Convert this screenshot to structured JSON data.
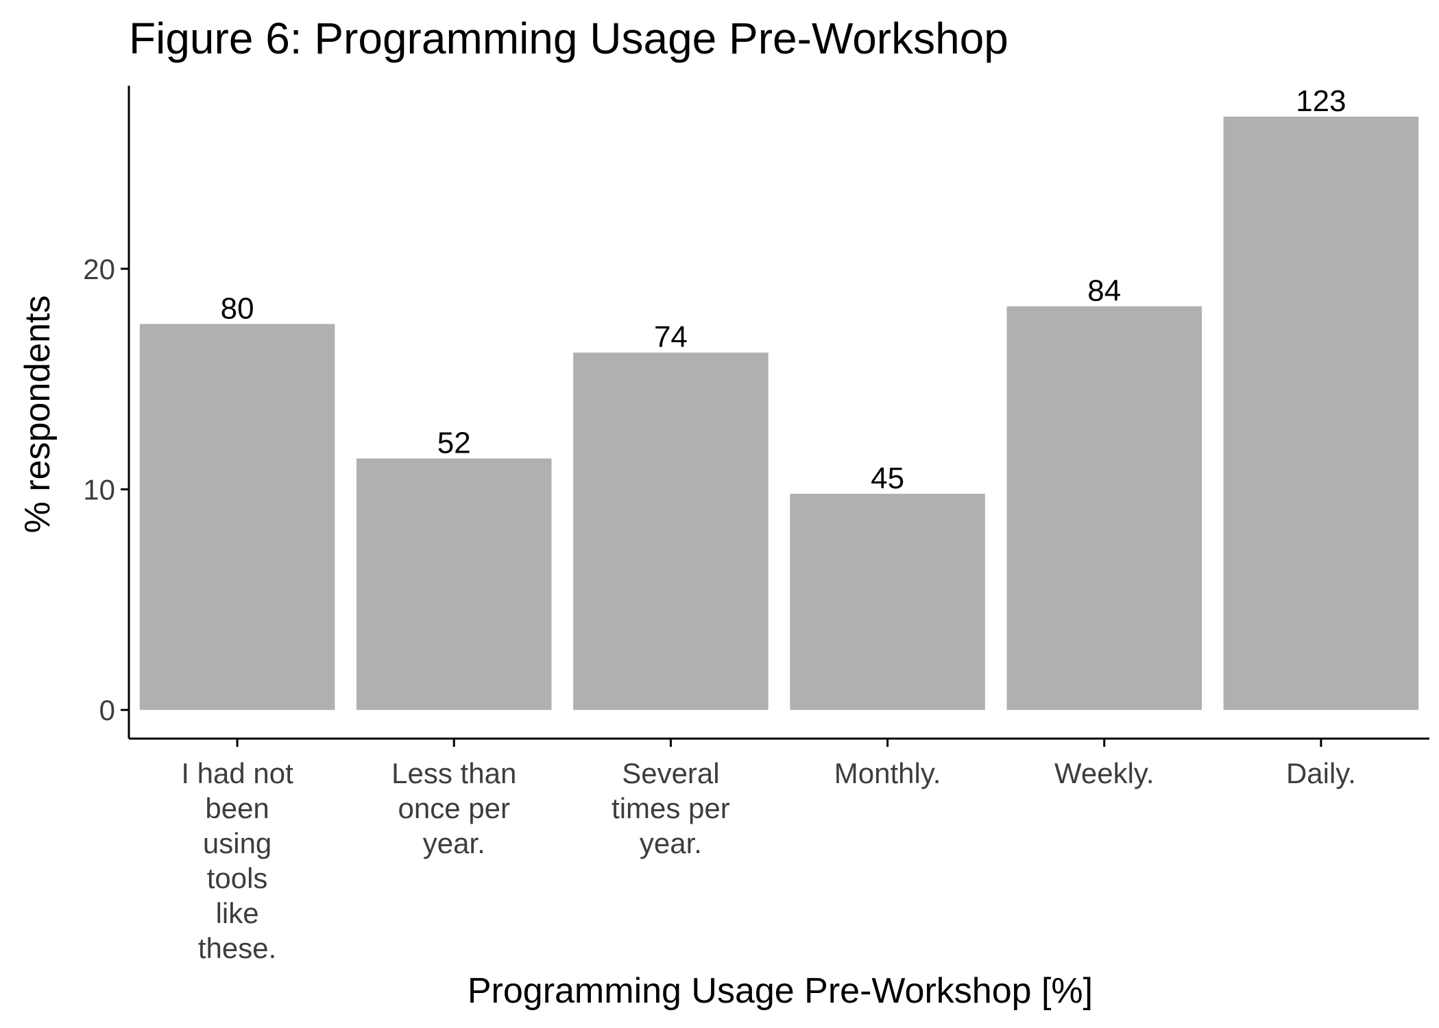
{
  "chart_data": {
    "type": "bar",
    "title": "Figure 6: Programming Usage Pre-Workshop",
    "xlabel": "Programming Usage Pre-Workshop [%]",
    "ylabel": "% respondents",
    "categories": [
      "I had not been using tools like these.",
      "Less than once per year.",
      "Several times per year.",
      "Monthly.",
      "Weekly.",
      "Daily."
    ],
    "category_lines": [
      [
        "I had not",
        "been",
        "using",
        "tools",
        "like",
        "these."
      ],
      [
        "Less than",
        "once per",
        "year."
      ],
      [
        "Several",
        "times per",
        "year."
      ],
      [
        "Monthly."
      ],
      [
        "Weekly."
      ],
      [
        "Daily."
      ]
    ],
    "values": [
      17.5,
      11.4,
      16.2,
      9.8,
      18.3,
      26.9
    ],
    "data_labels": [
      "80",
      "52",
      "74",
      "45",
      "84",
      "123"
    ],
    "yticks": [
      0,
      10,
      20
    ],
    "ylim": [
      -1.3,
      28.3
    ],
    "grid": false,
    "legend": "none",
    "colors": {
      "bar": "#b0b0b0",
      "axis": "#000000",
      "tick_text": "#3d3d3d"
    }
  }
}
